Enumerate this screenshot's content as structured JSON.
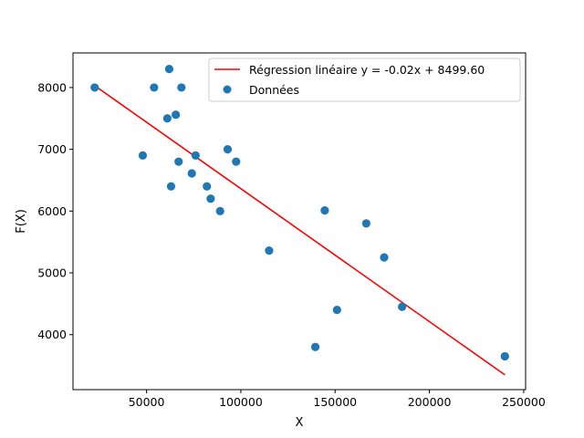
{
  "chart_data": {
    "type": "scatter",
    "xlabel": "X",
    "ylabel": "F(X)",
    "xlim": [
      11000,
      251000
    ],
    "ylim": [
      3110,
      8560
    ],
    "x_ticks": [
      50000,
      100000,
      150000,
      200000,
      250000
    ],
    "x_tick_labels": [
      "50000",
      "100000",
      "150000",
      "200000",
      "250000"
    ],
    "y_ticks": [
      4000,
      5000,
      6000,
      7000,
      8000
    ],
    "y_tick_labels": [
      "4000",
      "5000",
      "6000",
      "7000",
      "8000"
    ],
    "grid": false,
    "legend_position": "top-right",
    "series": [
      {
        "name": "Données",
        "kind": "scatter",
        "color": "#1f77b4",
        "points": [
          [
            22500,
            8000
          ],
          [
            48000,
            6900
          ],
          [
            54000,
            8000
          ],
          [
            61000,
            7500
          ],
          [
            62000,
            8300
          ],
          [
            63000,
            6400
          ],
          [
            65500,
            7560
          ],
          [
            67000,
            6800
          ],
          [
            68500,
            8000
          ],
          [
            74000,
            6610
          ],
          [
            76000,
            6900
          ],
          [
            82000,
            6400
          ],
          [
            84000,
            6200
          ],
          [
            89000,
            6000
          ],
          [
            93000,
            7000
          ],
          [
            97500,
            6800
          ],
          [
            115000,
            5360
          ],
          [
            139500,
            3800
          ],
          [
            144500,
            6010
          ],
          [
            151000,
            4400
          ],
          [
            166500,
            5800
          ],
          [
            176000,
            5250
          ],
          [
            185500,
            4450
          ],
          [
            240000,
            3650
          ]
        ]
      },
      {
        "name": "Régression linéaire y = -0.02x +  8499.60",
        "kind": "line",
        "color": "#ff0000",
        "points": [
          [
            22500,
            8030
          ],
          [
            240000,
            3350
          ]
        ]
      }
    ]
  }
}
